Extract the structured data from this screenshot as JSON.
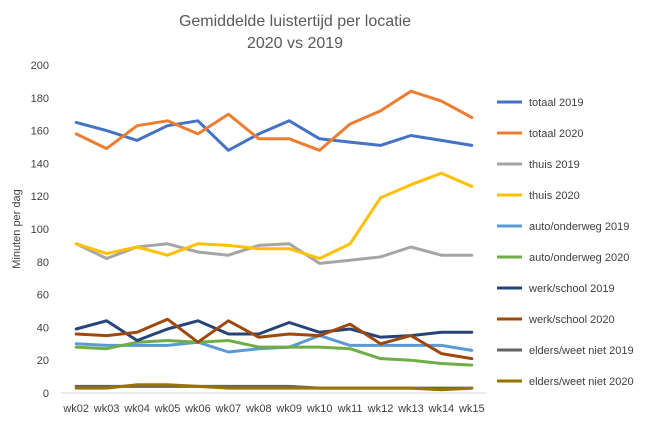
{
  "chart_data": {
    "type": "line",
    "title": "Gemiddelde luistertijd per locatie",
    "subtitle": "2020 vs 2019",
    "xlabel": "",
    "ylabel": "Minuten per dag",
    "ylim": [
      0,
      200
    ],
    "yticks": [
      "0",
      "20",
      "40",
      "60",
      "80",
      "100",
      "120",
      "140",
      "160",
      "180",
      "200"
    ],
    "categories": [
      "wk02",
      "wk03",
      "wk04",
      "wk05",
      "wk06",
      "wk07",
      "wk08",
      "wk09",
      "wk10",
      "wk11",
      "wk12",
      "wk13",
      "wk14",
      "wk15"
    ],
    "grid": false,
    "legend_position": "right",
    "series": [
      {
        "name": "totaal 2019",
        "color": "#4472C4",
        "values": [
          165,
          160,
          154,
          163,
          166,
          148,
          158,
          166,
          155,
          153,
          151,
          157,
          154,
          151
        ]
      },
      {
        "name": "totaal 2020",
        "color": "#ED7D31",
        "values": [
          158,
          149,
          163,
          166,
          158,
          170,
          155,
          155,
          148,
          164,
          172,
          184,
          178,
          168
        ]
      },
      {
        "name": "thuis 2019",
        "color": "#A5A5A5",
        "values": [
          91,
          82,
          89,
          91,
          86,
          84,
          90,
          91,
          79,
          81,
          83,
          89,
          84,
          84
        ]
      },
      {
        "name": "thuis 2020",
        "color": "#FFC000",
        "values": [
          91,
          85,
          89,
          84,
          91,
          90,
          88,
          88,
          82,
          91,
          119,
          127,
          134,
          126
        ]
      },
      {
        "name": "auto/onderweg 2019",
        "color": "#5B9BD5",
        "values": [
          30,
          29,
          29,
          29,
          31,
          25,
          27,
          28,
          35,
          29,
          29,
          29,
          29,
          26
        ]
      },
      {
        "name": "auto/onderweg 2020",
        "color": "#70AD47",
        "values": [
          28,
          27,
          31,
          32,
          31,
          32,
          28,
          28,
          28,
          27,
          21,
          20,
          18,
          17
        ]
      },
      {
        "name": "werk/school 2019",
        "color": "#264478",
        "values": [
          39,
          44,
          32,
          39,
          44,
          36,
          36,
          43,
          37,
          39,
          34,
          35,
          37,
          37
        ]
      },
      {
        "name": "werk/school 2020",
        "color": "#9E480E",
        "values": [
          36,
          35,
          37,
          45,
          31,
          44,
          34,
          36,
          35,
          42,
          30,
          35,
          24,
          21
        ]
      },
      {
        "name": "elders/weet niet 2019",
        "color": "#636363",
        "values": [
          4,
          4,
          4,
          4,
          4,
          4,
          4,
          4,
          3,
          3,
          3,
          3,
          3,
          3
        ]
      },
      {
        "name": "elders/weet niet 2020",
        "color": "#997300",
        "values": [
          3,
          3,
          5,
          5,
          4,
          3,
          3,
          3,
          3,
          3,
          3,
          3,
          2,
          3
        ]
      }
    ]
  }
}
